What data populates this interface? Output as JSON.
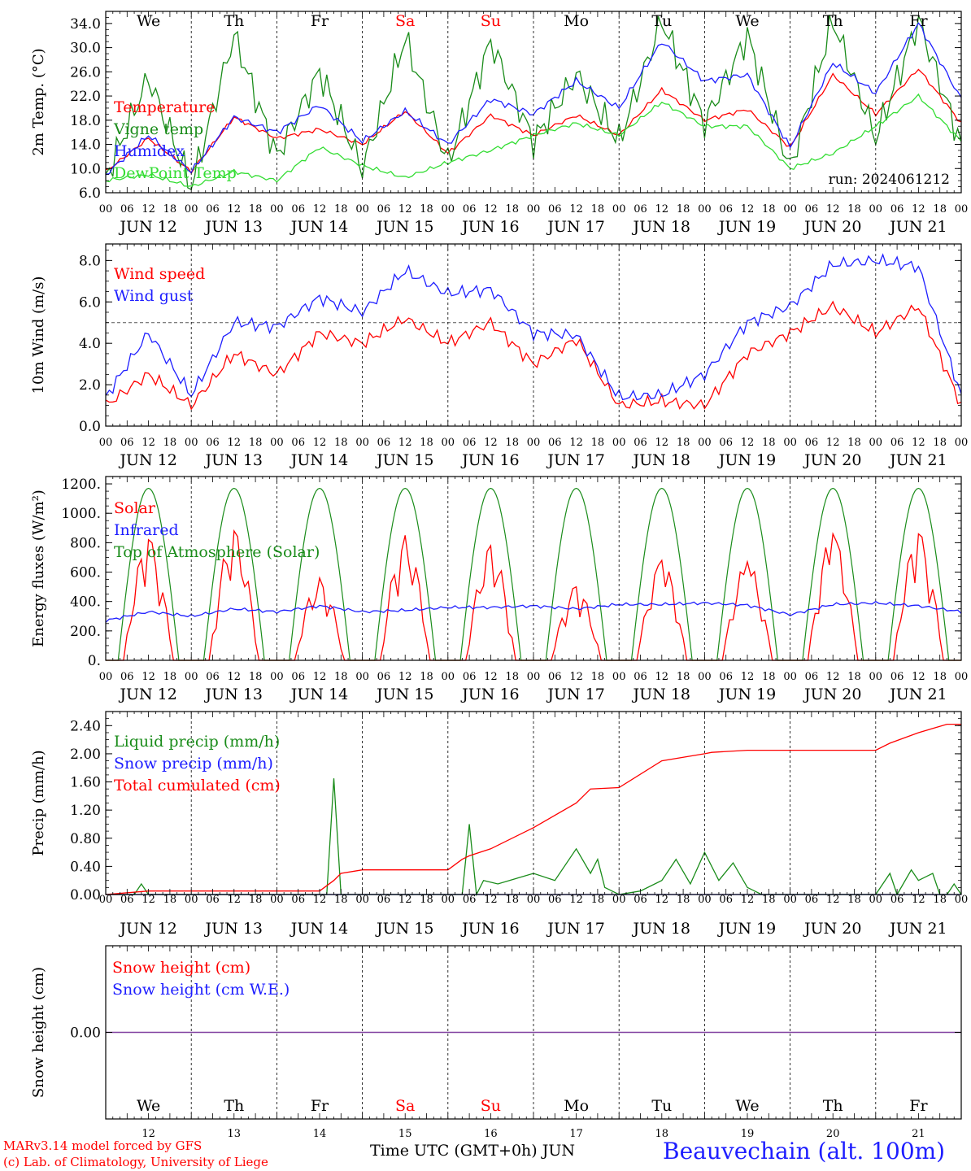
{
  "run_label": "run: 2024061212",
  "x_axis": {
    "hour_ticks": [
      "00",
      "06",
      "12",
      "18"
    ],
    "date_labels": [
      "JUN 12",
      "JUN 13",
      "JUN 14",
      "JUN 15",
      "JUN 16",
      "JUN 17",
      "JUN 18",
      "JUN 19",
      "JUN 20",
      "JUN 21"
    ],
    "weekdays": [
      "We",
      "Th",
      "Fr",
      "Sa",
      "Su",
      "Mo",
      "Tu",
      "We",
      "Th",
      "Fr"
    ],
    "weekend_flags": [
      false,
      false,
      false,
      true,
      true,
      false,
      false,
      false,
      false,
      false
    ],
    "day_numbers": [
      "12",
      "13",
      "14",
      "15",
      "16",
      "17",
      "18",
      "19",
      "20",
      "21"
    ],
    "title": "Time UTC (GMT+0h)",
    "month": "JUN"
  },
  "colors": {
    "red": "#ff0000",
    "green": "#1a8c1a",
    "blue": "#1e1eff",
    "lightgreen": "#33dd33",
    "purple": "#8040a0",
    "grey": "#555555"
  },
  "footer": {
    "credit_line1": "MARv3.14 model forced by GFS",
    "credit_line2": "(c) Lab. of Climatology, University of Liege",
    "station": "Beauvechain (alt. 100m)"
  },
  "chart_data": [
    {
      "type": "line",
      "ylabel": "2m Temp. (°C)",
      "ylim": [
        6,
        36
      ],
      "yticks": [
        "6.0",
        "10.0",
        "14.0",
        "18.0",
        "22.0",
        "26.0",
        "30.0",
        "34.0"
      ],
      "ytick_values": [
        6,
        10,
        14,
        18,
        22,
        26,
        30,
        34
      ],
      "x_hours": [
        0,
        12,
        24,
        36,
        48,
        60,
        72,
        84,
        96,
        108,
        120,
        132,
        144,
        156,
        168,
        180,
        192,
        204,
        216,
        228,
        240
      ],
      "series": [
        {
          "name": "Temperature",
          "color": "#ff0000",
          "values": [
            9.5,
            15.0,
            9.5,
            18.5,
            15.0,
            16.5,
            14.0,
            19.5,
            12.5,
            18.8,
            15.5,
            18.8,
            15.5,
            23.0,
            18.0,
            19.8,
            13.5,
            25.5,
            19.0,
            26.5,
            17.5
          ]
        },
        {
          "name": "Vigne temp",
          "color": "#1a8c1a",
          "values": [
            8.5,
            25.0,
            7.0,
            32.0,
            12.0,
            26.0,
            10.0,
            31.5,
            11.0,
            31.0,
            14.5,
            25.5,
            14.5,
            34.5,
            17.5,
            32.0,
            10.0,
            34.5,
            15.0,
            34.5,
            14.0
          ]
        },
        {
          "name": "Humidex",
          "color": "#1e1eff",
          "values": [
            9.0,
            15.5,
            9.5,
            18.5,
            16.0,
            20.5,
            14.5,
            19.5,
            14.0,
            21.5,
            19.0,
            24.5,
            20.0,
            31.0,
            24.5,
            25.5,
            13.5,
            27.5,
            22.5,
            34.0,
            21.5
          ]
        },
        {
          "name": "DewPoint Temp",
          "color": "#33dd33",
          "values": [
            8.0,
            9.0,
            7.0,
            9.5,
            8.0,
            13.5,
            10.5,
            8.5,
            11.0,
            13.0,
            15.5,
            17.5,
            15.5,
            21.0,
            17.0,
            17.0,
            10.0,
            12.5,
            17.0,
            22.0,
            14.5
          ]
        }
      ]
    },
    {
      "type": "line",
      "ylabel": "10m Wind (m/s)",
      "ylim": [
        0,
        8.8
      ],
      "yticks": [
        "0.0",
        "2.0",
        "4.0",
        "6.0",
        "8.0"
      ],
      "ytick_values": [
        0,
        2,
        4,
        6,
        8
      ],
      "reference_line": 5.0,
      "x_hours": [
        0,
        12,
        24,
        36,
        48,
        60,
        72,
        84,
        96,
        108,
        120,
        132,
        144,
        156,
        168,
        180,
        192,
        204,
        216,
        228,
        240
      ],
      "series": [
        {
          "name": "Wind speed",
          "color": "#ff0000",
          "values": [
            1.0,
            2.5,
            1.0,
            3.5,
            2.5,
            4.5,
            4.0,
            5.2,
            4.0,
            5.0,
            3.0,
            4.2,
            1.0,
            1.2,
            1.0,
            3.5,
            4.5,
            5.8,
            4.5,
            5.8,
            1.0
          ]
        },
        {
          "name": "Wind gust",
          "color": "#1e1eff",
          "values": [
            1.4,
            4.5,
            1.5,
            5.0,
            4.8,
            6.2,
            5.5,
            7.5,
            6.4,
            6.6,
            4.5,
            4.4,
            1.4,
            1.5,
            2.5,
            5.0,
            5.8,
            7.8,
            8.0,
            7.7,
            1.5
          ]
        }
      ]
    },
    {
      "type": "line",
      "ylabel": "Energy fluxes (W/m²)",
      "ylim": [
        0,
        1250
      ],
      "yticks": [
        "0.",
        "200.",
        "400.",
        "600.",
        "800.",
        "1000.",
        "1200."
      ],
      "ytick_values": [
        0,
        200,
        400,
        600,
        800,
        1000,
        1200
      ],
      "solar_noon_peaks": [
        820,
        880,
        560,
        850,
        780,
        500,
        680,
        670,
        860,
        860
      ],
      "series": [
        {
          "name": "Solar",
          "color": "#ff0000"
        },
        {
          "name": "Infrared",
          "color": "#1e1eff",
          "x_hours": [
            0,
            12,
            24,
            36,
            48,
            60,
            72,
            84,
            96,
            108,
            120,
            132,
            144,
            156,
            168,
            180,
            192,
            204,
            216,
            228,
            240
          ],
          "values": [
            270,
            330,
            300,
            350,
            330,
            370,
            330,
            340,
            360,
            360,
            370,
            350,
            380,
            380,
            390,
            375,
            310,
            380,
            390,
            370,
            330
          ]
        },
        {
          "name": "Top of Atmosphere (Solar)",
          "color": "#1a8c1a",
          "peak": 1170,
          "sunrise_hour": 3.5,
          "sunset_hour": 20.5
        }
      ]
    },
    {
      "type": "line",
      "ylabel": "Precip (mm/h)",
      "ylim": [
        0,
        2.6
      ],
      "yticks": [
        "0.00",
        "0.40",
        "0.80",
        "1.20",
        "1.60",
        "2.00",
        "2.40"
      ],
      "ytick_values": [
        0,
        0.4,
        0.8,
        1.2,
        1.6,
        2.0,
        2.4
      ],
      "series": [
        {
          "name": "Liquid precip (mm/h)",
          "color": "#1a8c1a",
          "x_hours": [
            0,
            8,
            10,
            12,
            14,
            24,
            48,
            62,
            64,
            66,
            68,
            72,
            96,
            100,
            102,
            104,
            106,
            110,
            120,
            126,
            132,
            136,
            138,
            140,
            144,
            150,
            156,
            160,
            164,
            168,
            172,
            176,
            180,
            184,
            186,
            192,
            200,
            216,
            220,
            222,
            226,
            228,
            232,
            234,
            236,
            238,
            240
          ],
          "values": [
            0,
            0,
            0.15,
            0,
            0,
            0,
            0,
            0,
            1.65,
            0,
            0,
            0,
            0,
            0,
            1.0,
            0,
            0.2,
            0.15,
            0.3,
            0.2,
            0.65,
            0.3,
            0.5,
            0.1,
            0,
            0.05,
            0.2,
            0.5,
            0.15,
            0.6,
            0.2,
            0.45,
            0.1,
            0,
            0,
            0,
            0,
            0,
            0.3,
            0,
            0.35,
            0.2,
            0.3,
            0,
            0,
            0.15,
            0
          ]
        },
        {
          "name": "Snow precip (mm/h)",
          "color": "#1e1eff",
          "x_hours": [
            0,
            240
          ],
          "values": [
            0,
            0
          ]
        },
        {
          "name": "Total cumulated (cm)",
          "color": "#ff0000",
          "x_hours": [
            0,
            12,
            24,
            48,
            60,
            64,
            66,
            72,
            96,
            100,
            102,
            108,
            120,
            132,
            136,
            144,
            156,
            168,
            170,
            180,
            192,
            204,
            216,
            220,
            228,
            236,
            240
          ],
          "values": [
            0,
            0.05,
            0.05,
            0.05,
            0.05,
            0.2,
            0.3,
            0.35,
            0.35,
            0.5,
            0.55,
            0.65,
            0.95,
            1.3,
            1.5,
            1.52,
            1.9,
            2.0,
            2.02,
            2.05,
            2.05,
            2.05,
            2.05,
            2.15,
            2.3,
            2.42,
            2.42
          ]
        }
      ]
    },
    {
      "type": "line",
      "ylabel": "Snow height (cm)",
      "ylim": [
        -1,
        1
      ],
      "yticks": [
        "0.00"
      ],
      "ytick_values": [
        0
      ],
      "series": [
        {
          "name": "Snow height (cm)",
          "color": "#ff0000",
          "x_hours": [
            0,
            240
          ],
          "values": [
            0,
            0
          ]
        },
        {
          "name": "Snow height (cm W.E.)",
          "color": "#1e1eff",
          "x_hours": [
            0,
            240
          ],
          "values": [
            0,
            0
          ]
        }
      ]
    }
  ]
}
